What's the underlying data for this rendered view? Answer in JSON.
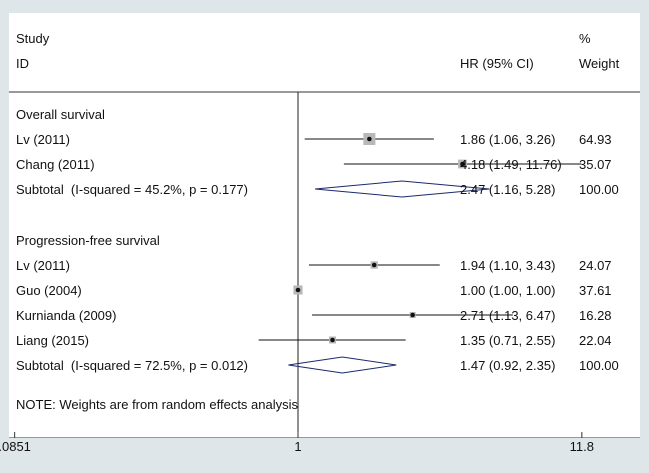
{
  "chart_data": {
    "type": "forest",
    "headers": {
      "study_line1": "Study",
      "study_line2": "ID",
      "hr": "HR (95% CI)",
      "weight_line1": "%",
      "weight_line2": "Weight"
    },
    "x_scale": "log",
    "x_ticks": [
      {
        "value": 0.0851,
        "label": ".0851"
      },
      {
        "value": 1,
        "label": "1"
      },
      {
        "value": 11.8,
        "label": "11.8"
      }
    ],
    "reference_line": 1,
    "groups": [
      {
        "label": "Overall survival",
        "studies": [
          {
            "id": "Lv (2011)",
            "hr": 1.86,
            "ci_low": 1.06,
            "ci_high": 3.26,
            "ci_text": "1.86 (1.06, 3.26)",
            "weight": 64.93,
            "weight_text": "64.93"
          },
          {
            "id": "Chang (2011)",
            "hr": 4.18,
            "ci_low": 1.49,
            "ci_high": 11.76,
            "ci_text": "4.18 (1.49, 11.76)",
            "weight": 35.07,
            "weight_text": "35.07"
          }
        ],
        "subtotal": {
          "label": "Subtotal  (I-squared = 45.2%, p = 0.177)",
          "hr": 2.47,
          "ci_low": 1.16,
          "ci_high": 5.28,
          "ci_text": "2.47 (1.16, 5.28)",
          "weight_text": "100.00"
        }
      },
      {
        "label": "Progression-free survival",
        "studies": [
          {
            "id": "Lv (2011)",
            "hr": 1.94,
            "ci_low": 1.1,
            "ci_high": 3.43,
            "ci_text": "1.94 (1.10, 3.43)",
            "weight": 24.07,
            "weight_text": "24.07"
          },
          {
            "id": "Guo (2004)",
            "hr": 1.0,
            "ci_low": 1.0,
            "ci_high": 1.0,
            "ci_text": "1.00 (1.00, 1.00)",
            "weight": 37.61,
            "weight_text": "37.61"
          },
          {
            "id": "Kurnianda (2009)",
            "hr": 2.71,
            "ci_low": 1.13,
            "ci_high": 6.47,
            "ci_text": "2.71 (1.13, 6.47)",
            "weight": 16.28,
            "weight_text": "16.28"
          },
          {
            "id": "Liang (2015)",
            "hr": 1.35,
            "ci_low": 0.71,
            "ci_high": 2.55,
            "ci_text": "1.35 (0.71, 2.55)",
            "weight": 22.04,
            "weight_text": "22.04"
          }
        ],
        "subtotal": {
          "label": "Subtotal  (I-squared = 72.5%, p = 0.012)",
          "hr": 1.47,
          "ci_low": 0.92,
          "ci_high": 2.35,
          "ci_text": "1.47 (0.92, 2.35)",
          "weight_text": "100.00"
        }
      }
    ],
    "note": "NOTE: Weights are from random effects analysis",
    "colors": {
      "page_background": "#dfe6ea",
      "diamond": "#1a2a6c",
      "weight_box": "#b8b8b8"
    }
  }
}
